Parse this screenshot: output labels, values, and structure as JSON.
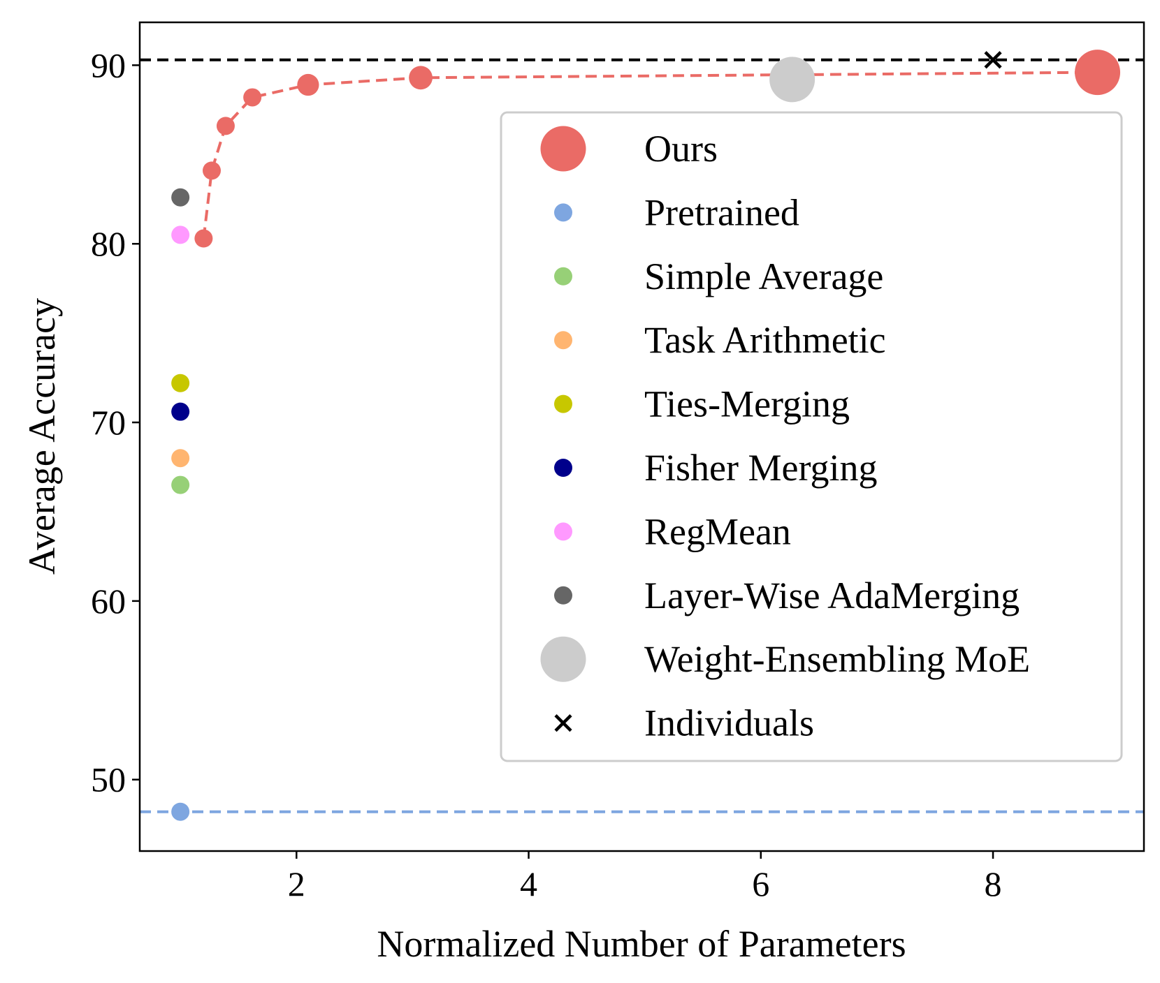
{
  "chart_data": {
    "type": "scatter",
    "title": "",
    "xlabel": "Normalized Number of Parameters",
    "ylabel": "Average Accuracy",
    "xlim": [
      0.65,
      9.3
    ],
    "ylim": [
      46.0,
      92.4
    ],
    "xticks": [
      2,
      4,
      6,
      8
    ],
    "yticks": [
      50,
      60,
      70,
      80,
      90
    ],
    "grid": false,
    "legend_position": "center-right",
    "reference_lines": [
      {
        "kind": "hline",
        "y": 90.3,
        "color": "#000000",
        "style": "dashed"
      },
      {
        "kind": "hline",
        "y": 48.2,
        "color": "#7ea6e0",
        "style": "dashed"
      }
    ],
    "series": [
      {
        "name": "Ours",
        "color": "#ea6b66",
        "marker": "circle",
        "connected": true,
        "line_style": "dashed",
        "points": [
          [
            1.2,
            80.3
          ],
          [
            1.27,
            84.1
          ],
          [
            1.39,
            86.6
          ],
          [
            1.62,
            88.2
          ],
          [
            2.1,
            88.9
          ],
          [
            3.07,
            89.3
          ],
          [
            8.9,
            89.6
          ]
        ],
        "sizes": [
          1,
          1,
          1,
          1,
          1.2,
          1.3,
          2.5
        ]
      },
      {
        "name": "Pretrained",
        "color": "#7ea6e0",
        "marker": "circle",
        "points": [
          [
            1.0,
            48.2
          ]
        ]
      },
      {
        "name": "Simple Average",
        "color": "#97d077",
        "marker": "circle",
        "points": [
          [
            1.0,
            66.5
          ]
        ]
      },
      {
        "name": "Task Arithmetic",
        "color": "#ffb570",
        "marker": "circle",
        "points": [
          [
            1.0,
            68.0
          ]
        ]
      },
      {
        "name": "Ties-Merging",
        "color": "#c7c700",
        "marker": "circle",
        "points": [
          [
            1.0,
            72.2
          ]
        ]
      },
      {
        "name": "Fisher Merging",
        "color": "#00008b",
        "marker": "circle",
        "points": [
          [
            1.0,
            70.6
          ]
        ]
      },
      {
        "name": "RegMean",
        "color": "#ff99ff",
        "marker": "circle",
        "points": [
          [
            1.0,
            80.5
          ]
        ]
      },
      {
        "name": "Layer-Wise AdaMerging",
        "color": "#666666",
        "marker": "circle",
        "points": [
          [
            1.0,
            82.6
          ]
        ]
      },
      {
        "name": "Weight-Ensembling MoE",
        "color": "#cccccc",
        "marker": "circle",
        "points": [
          [
            6.27,
            89.2
          ]
        ],
        "sizes": [
          2.5
        ]
      },
      {
        "name": "Individuals",
        "color": "#000000",
        "marker": "x",
        "points": [
          [
            8.0,
            90.3
          ]
        ]
      }
    ]
  }
}
